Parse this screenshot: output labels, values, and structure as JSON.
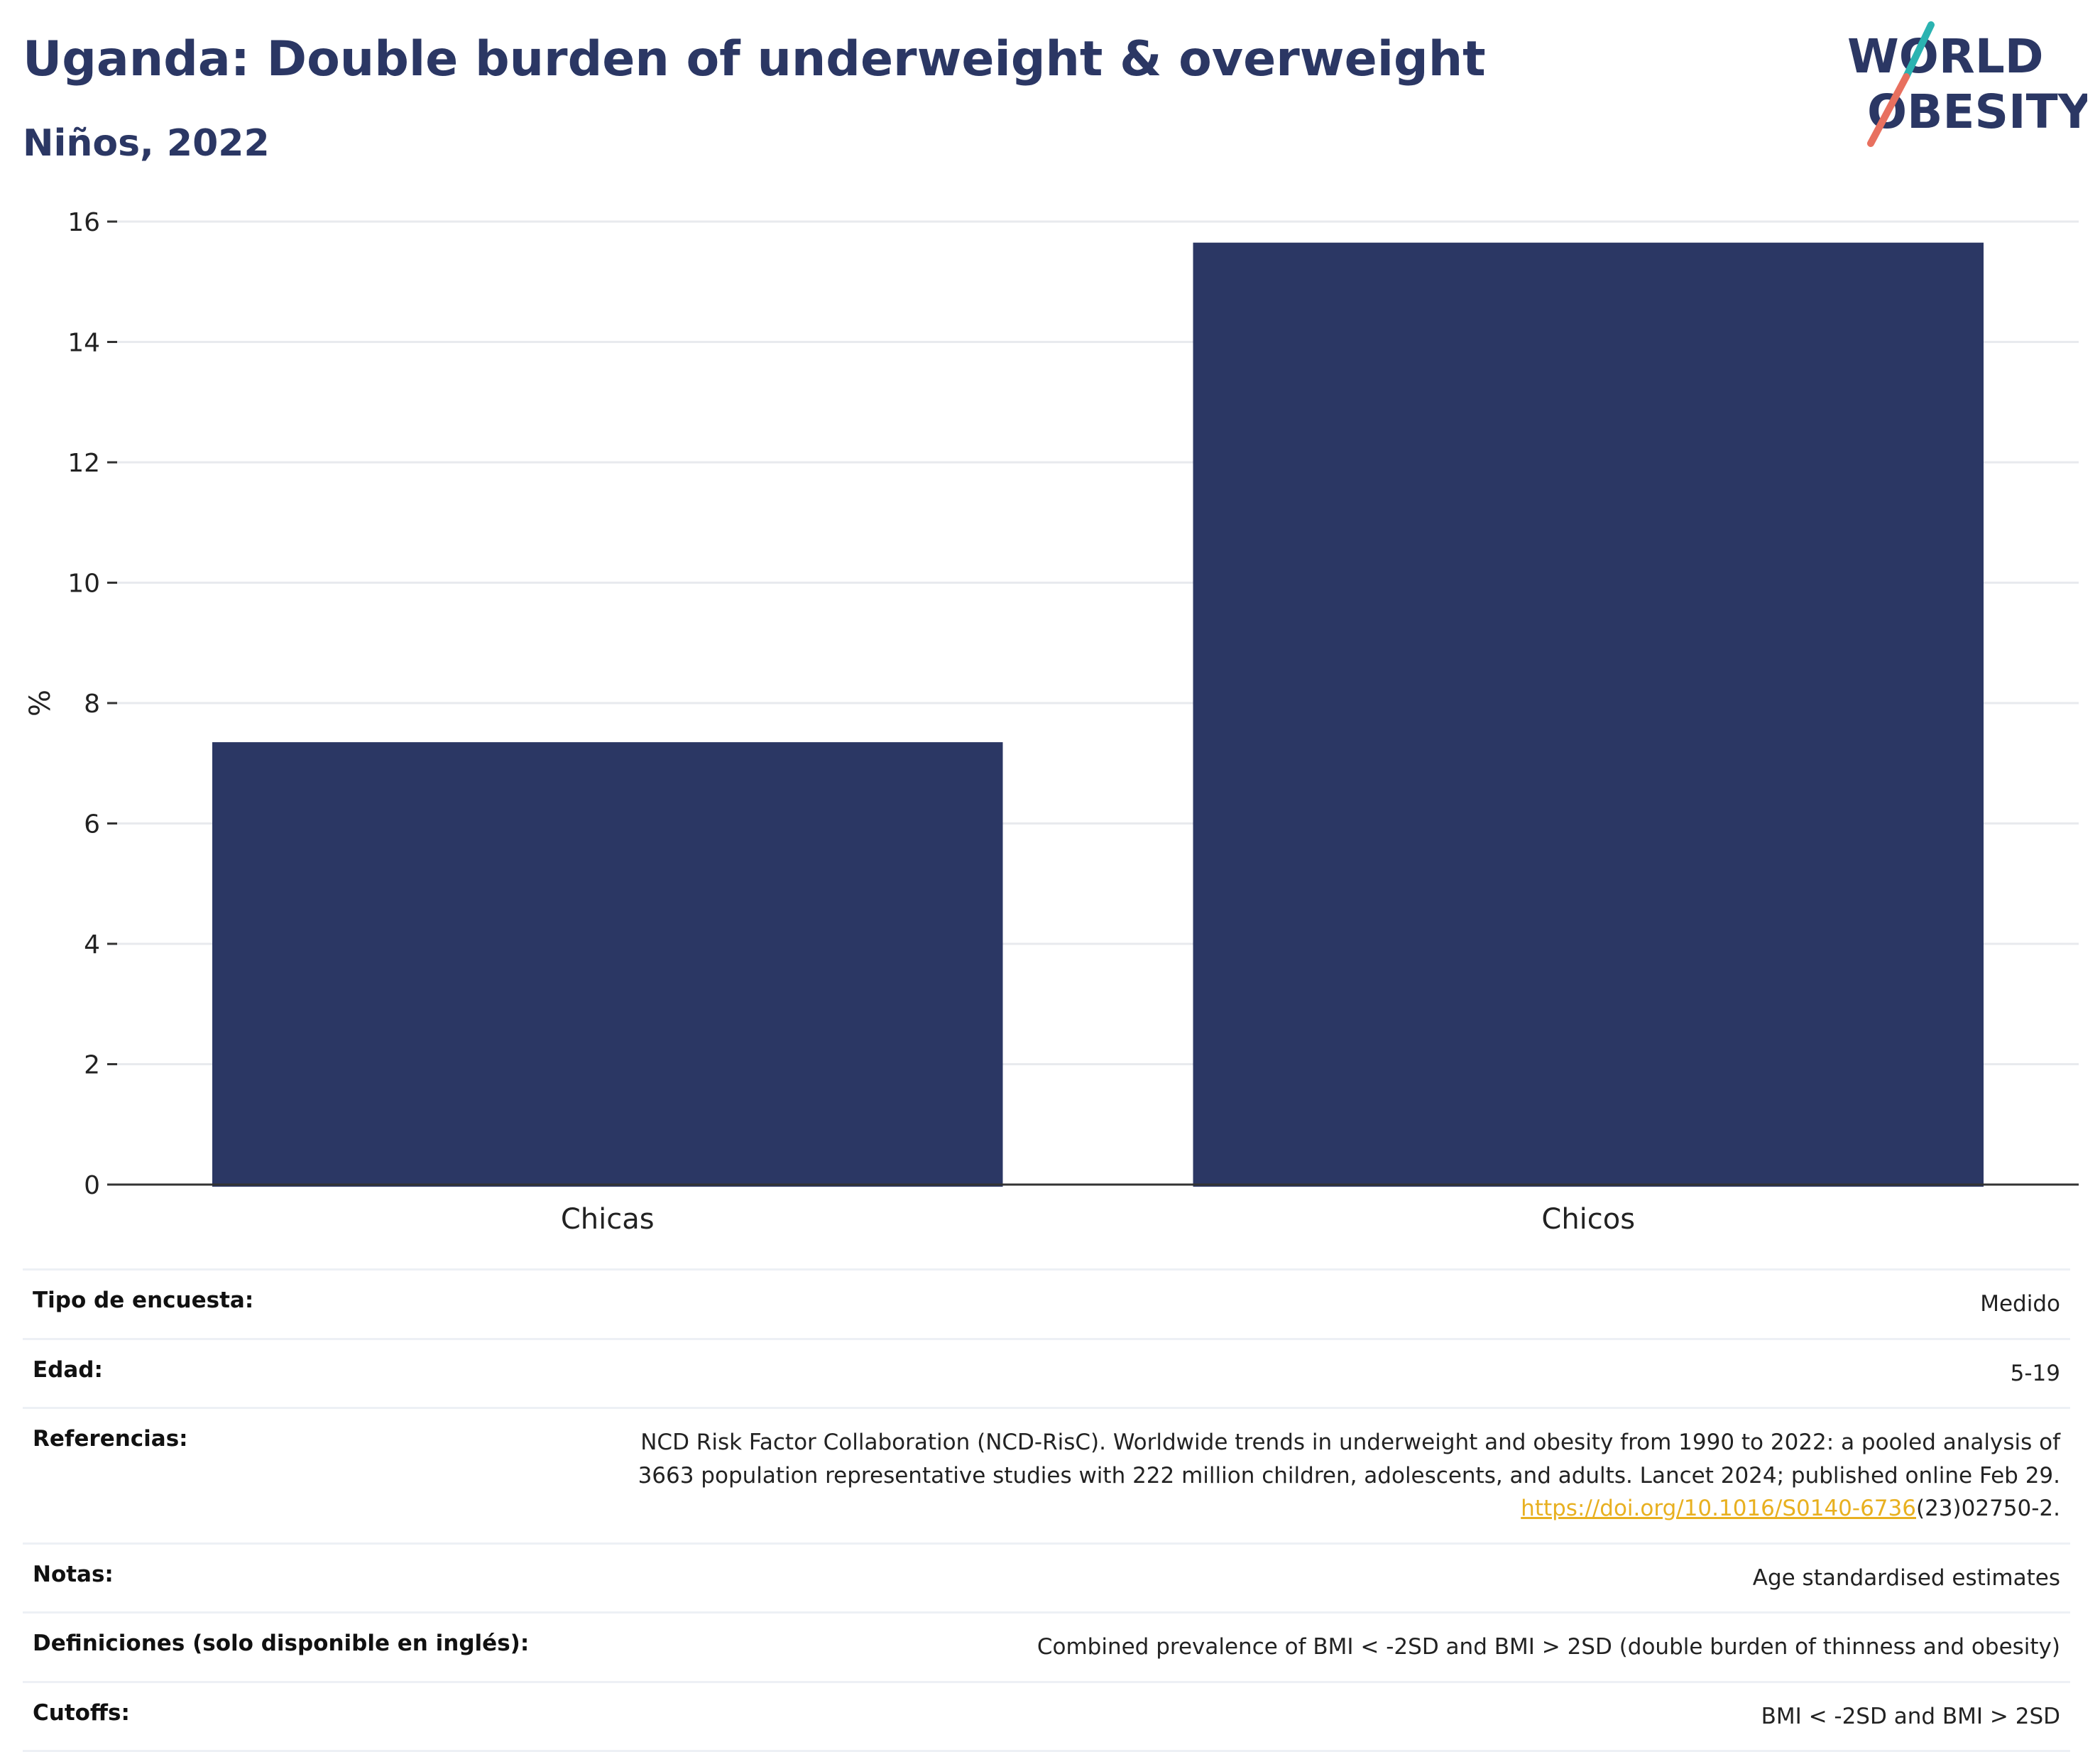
{
  "header": {
    "title": "Uganda: Double burden of underweight & overweight",
    "subtitle": "Niños, 2022",
    "logo_line1": "WORLD",
    "logo_line2": "OBESITY"
  },
  "chart_data": {
    "type": "bar",
    "categories": [
      "Chicas",
      "Chicos"
    ],
    "values": [
      7.35,
      15.65
    ],
    "ylabel": "%",
    "ylim": [
      0,
      16
    ],
    "yticks": [
      0,
      2,
      4,
      6,
      8,
      10,
      12,
      14,
      16
    ],
    "grid": true,
    "bar_color": "#2b3764"
  },
  "metadata": {
    "survey_type": {
      "label": "Tipo de encuesta:",
      "value": "Medido"
    },
    "age": {
      "label": "Edad:",
      "value": "5-19"
    },
    "references": {
      "label": "Referencias:",
      "line1": "NCD Risk Factor Collaboration (NCD-RisC). Worldwide trends in underweight and obesity from 1990 to 2022: a pooled analysis of",
      "line2": "3663 population representative studies with 222 million children, adolescents, and adults. Lancet 2024; published online Feb 29.",
      "link": "https://doi.org/10.1016/S0140-6736",
      "link_suffix": "(23)02750-2."
    },
    "notes": {
      "label": "Notas:",
      "value": "Age standardised estimates"
    },
    "definitions": {
      "label": "Definiciones (solo disponible en inglés):",
      "value": "Combined prevalence of BMI < -2SD and BMI > 2SD (double burden of thinness and obesity)"
    },
    "cutoffs": {
      "label": "Cutoffs:",
      "value": "BMI < -2SD and BMI > 2SD"
    }
  },
  "colors": {
    "accent_teal": "#2bb3b1",
    "accent_coral": "#e8705f",
    "navy": "#2b3764",
    "link": "#e8b020"
  }
}
